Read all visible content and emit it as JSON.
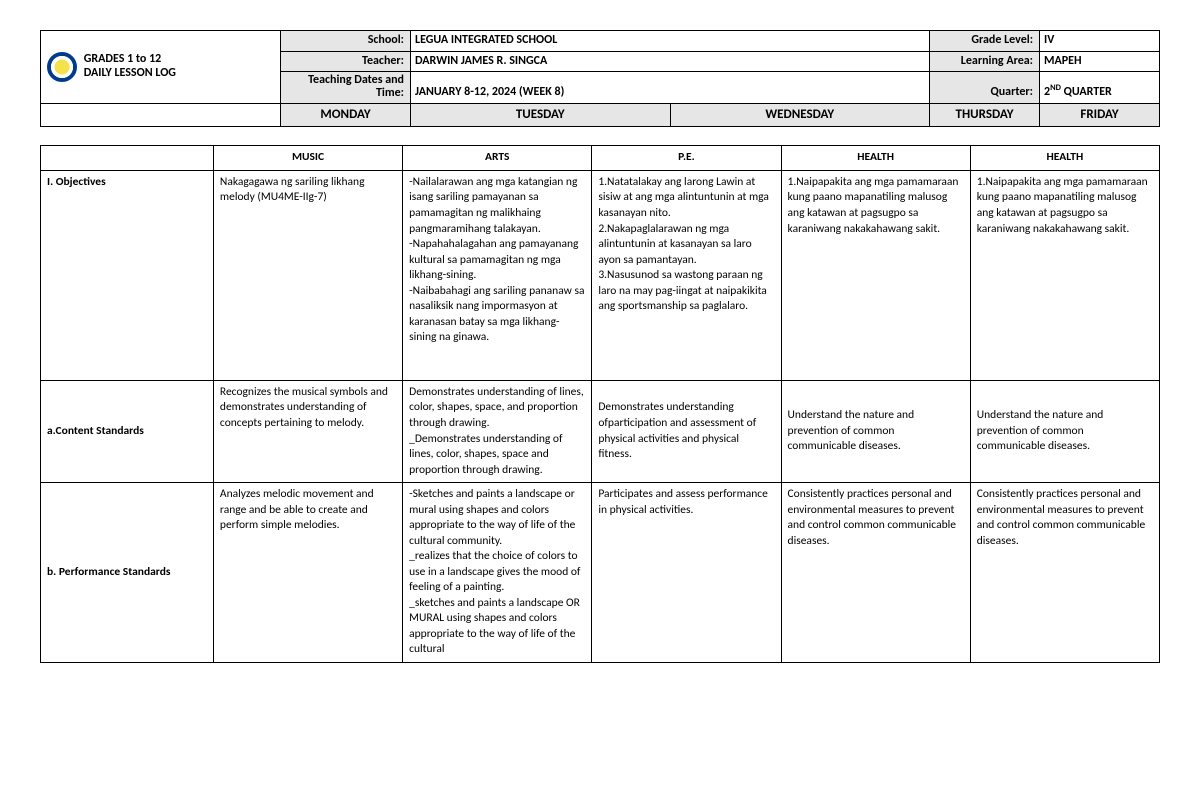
{
  "header": {
    "titleLine1": "GRADES 1 to 12",
    "titleLine2": "DAILY LESSON LOG",
    "labels": {
      "school": "School:",
      "teacher": "Teacher:",
      "dates": "Teaching Dates and Time:",
      "grade": "Grade Level:",
      "area": "Learning Area:",
      "quarter": "Quarter:"
    },
    "values": {
      "school": "LEGUA INTEGRATED SCHOOL",
      "teacher": "DARWIN JAMES R. SINGCA",
      "dates": "JANUARY 8-12, 2024 (WEEK 8)",
      "grade": "IV",
      "area": "MAPEH",
      "quarter_prefix": "2",
      "quarter_sup": "ND",
      "quarter_suffix": " QUARTER"
    }
  },
  "days": {
    "mon": "MONDAY",
    "tue": "TUESDAY",
    "wed": "WEDNESDAY",
    "thu": "THURSDAY",
    "fri": "FRIDAY"
  },
  "subjects": {
    "mon": "MUSIC",
    "tue": "ARTS",
    "wed": "P.E.",
    "thu": "HEALTH",
    "fri": "HEALTH"
  },
  "rows": {
    "objectives": {
      "label": "I. Objectives",
      "mon": "Nakagagawa ng sariling likhang melody (MU4ME-IIg-7)",
      "tue": "-Nailalarawan ang mga katangian ng isang sariling pamayanan sa pamamagitan ng malikhaing pangmaramihang talakayan.\n-Napahahalagahan ang pamayanang kultural sa pamamagitan ng mga likhang-sining.\n-Naibabahagi ang sariling pananaw sa nasaliksik nang impormasyon at karanasan batay sa mga likhang-sining na ginawa.",
      "wed": "1.Natatalakay ang larong Lawin at sisiw at ang mga alintuntunin at mga kasanayan nito.\n2.Nakapaglalarawan ng mga alintuntunin at kasanayan sa laro ayon sa pamantayan.\n3.Nasusunod sa wastong paraan ng laro na may pag-iingat at naipakikita ang sportsmanship sa paglalaro.",
      "thu": "1.Naipapakita ang mga pamamaraan kung paano mapanatiling malusog ang katawan at pagsugpo sa karaniwang nakakahawang sakit.",
      "fri": "1.Naipapakita ang mga pamamaraan kung paano mapanatiling malusog ang katawan at pagsugpo sa karaniwang nakakahawang sakit."
    },
    "content": {
      "label": "a.Content Standards",
      "mon": "Recognizes the musical symbols and demonstrates understanding of concepts pertaining to melody.",
      "tue": "Demonstrates understanding of lines, color, shapes, space, and proportion through drawing.\n_Demonstrates understanding of lines, color, shapes, space and proportion through drawing.",
      "wed": "Demonstrates understanding ofparticipation and assessment of physical activities and physical fitness.",
      "thu": "Understand the nature and prevention of common communicable diseases.",
      "fri": "Understand the nature and prevention of common communicable diseases."
    },
    "performance": {
      "label": "b. Performance Standards",
      "mon": "Analyzes melodic movement and range and be able to create and perform simple melodies.",
      "tue": "-Sketches and paints a landscape or mural using shapes and colors appropriate to the way of life of the cultural community.\n_realizes that the choice of colors to use in a landscape gives the mood of feeling of a painting.\n_sketches and paints a landscape OR MURAL using shapes and colors appropriate to the way of life of the cultural",
      "wed": "Participates and assess performance in physical activities.",
      "thu": "Consistently practices personal and environmental measures to prevent and control common communicable diseases.",
      "fri": "Consistently practices personal and environmental measures to prevent and control common communicable diseases."
    }
  }
}
